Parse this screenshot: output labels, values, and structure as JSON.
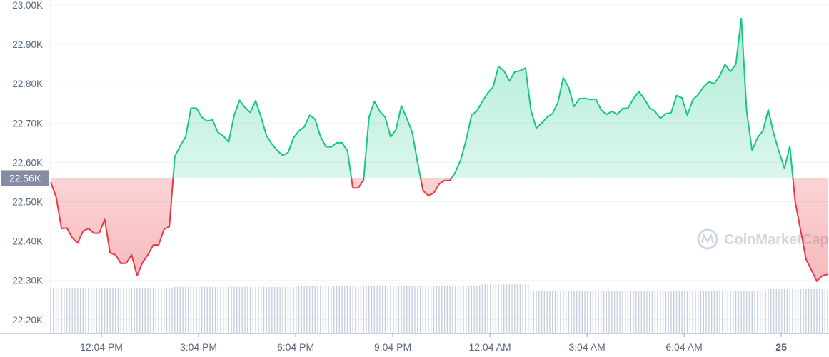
{
  "chart_data": {
    "type": "line",
    "title": "",
    "xlabel": "",
    "ylabel": "",
    "ylim": [
      22170,
      23000
    ],
    "grid": true,
    "baseline": {
      "value": 22560,
      "label": "22.56K"
    },
    "colors": {
      "above": "#16c784",
      "below": "#ea3943",
      "volume": "#c6cfe0",
      "baseline_label_bg": "#858ca2"
    },
    "watermark": "CoinMarketCap",
    "y_ticks": [
      {
        "value": 23000,
        "label": "23.00K"
      },
      {
        "value": 22900,
        "label": "22.90K"
      },
      {
        "value": 22800,
        "label": "22.80K"
      },
      {
        "value": 22700,
        "label": "22.70K"
      },
      {
        "value": 22600,
        "label": "22.60K"
      },
      {
        "value": 22500,
        "label": "22.50K"
      },
      {
        "value": 22400,
        "label": "22.40K"
      },
      {
        "value": 22300,
        "label": "22.30K"
      },
      {
        "value": 22200,
        "label": "22.20K"
      }
    ],
    "x_ticks": [
      {
        "at": "12:04",
        "label": "12:04 PM",
        "bold": false
      },
      {
        "at": "15:04",
        "label": "3:04 PM",
        "bold": false
      },
      {
        "at": "18:04",
        "label": "6:04 PM",
        "bold": false
      },
      {
        "at": "21:04",
        "label": "9:04 PM",
        "bold": false
      },
      {
        "at": "00:04",
        "label": "12:04 AM",
        "bold": false
      },
      {
        "at": "03:04",
        "label": "3:04 AM",
        "bold": false
      },
      {
        "at": "06:04",
        "label": "6:04 AM",
        "bold": false
      },
      {
        "at": "09:04",
        "label": "25",
        "bold": true
      }
    ],
    "x": [
      "10:30",
      "10:40",
      "10:50",
      "11:00",
      "11:10",
      "11:20",
      "11:30",
      "11:40",
      "11:50",
      "12:00",
      "12:10",
      "12:20",
      "12:30",
      "12:40",
      "12:50",
      "13:00",
      "13:10",
      "13:20",
      "13:30",
      "13:40",
      "13:50",
      "14:00",
      "14:10",
      "14:20",
      "14:30",
      "14:40",
      "14:50",
      "15:00",
      "15:10",
      "15:20",
      "15:30",
      "15:40",
      "15:50",
      "16:00",
      "16:10",
      "16:20",
      "16:30",
      "16:40",
      "16:50",
      "17:00",
      "17:10",
      "17:20",
      "17:30",
      "17:40",
      "17:50",
      "18:00",
      "18:10",
      "18:20",
      "18:30",
      "18:40",
      "18:50",
      "19:00",
      "19:10",
      "19:20",
      "19:30",
      "19:40",
      "19:50",
      "20:00",
      "20:10",
      "20:20",
      "20:30",
      "20:40",
      "20:50",
      "21:00",
      "21:10",
      "21:20",
      "21:30",
      "21:40",
      "21:50",
      "22:00",
      "22:10",
      "22:20",
      "22:30",
      "22:40",
      "22:50",
      "23:00",
      "23:10",
      "23:20",
      "23:30",
      "23:40",
      "23:50",
      "00:00",
      "00:10",
      "00:20",
      "00:30",
      "00:40",
      "00:50",
      "01:00",
      "01:10",
      "01:20",
      "01:30",
      "01:40",
      "01:50",
      "02:00",
      "02:10",
      "02:20",
      "02:30",
      "02:40",
      "02:50",
      "03:00",
      "03:10",
      "03:20",
      "03:30",
      "03:40",
      "03:50",
      "04:00",
      "04:10",
      "04:20",
      "04:30",
      "04:40",
      "04:50",
      "05:00",
      "05:10",
      "05:20",
      "05:30",
      "05:40",
      "05:50",
      "06:00",
      "06:10",
      "06:20",
      "06:30",
      "06:40",
      "06:50",
      "07:00",
      "07:10",
      "07:20",
      "07:30",
      "07:40",
      "07:50",
      "08:00",
      "08:10",
      "08:20",
      "08:30",
      "08:40",
      "08:50",
      "09:00",
      "09:10",
      "09:20",
      "09:30",
      "09:40",
      "09:50",
      "10:00",
      "10:10",
      "10:20",
      "10:30"
    ],
    "series": [
      {
        "values": [
          22550,
          22512,
          22432,
          22433,
          22408,
          22395,
          22425,
          22432,
          22420,
          22420,
          22455,
          22370,
          22365,
          22343,
          22344,
          22365,
          22312,
          22345,
          22365,
          22390,
          22390,
          22430,
          22437,
          22615,
          22642,
          22665,
          22738,
          22738,
          22715,
          22705,
          22708,
          22676,
          22667,
          22652,
          22720,
          22758,
          22740,
          22727,
          22757,
          22715,
          22668,
          22647,
          22630,
          22618,
          22625,
          22662,
          22680,
          22690,
          22720,
          22710,
          22666,
          22640,
          22639,
          22650,
          22650,
          22630,
          22535,
          22535,
          22555,
          22715,
          22755,
          22730,
          22715,
          22665,
          22683,
          22744,
          22712,
          22677,
          22600,
          22528,
          22516,
          22522,
          22545,
          22554,
          22554,
          22575,
          22607,
          22657,
          22720,
          22731,
          22755,
          22776,
          22792,
          22844,
          22833,
          22807,
          22830,
          22833,
          22840,
          22733,
          22687,
          22700,
          22715,
          22724,
          22752,
          22815,
          22790,
          22742,
          22762,
          22763,
          22760,
          22761,
          22734,
          22722,
          22730,
          22722,
          22737,
          22738,
          22762,
          22780,
          22762,
          22739,
          22730,
          22712,
          22724,
          22726,
          22770,
          22764,
          22720,
          22759,
          22772,
          22792,
          22805,
          22800,
          22820,
          22849,
          22831,
          22850,
          22966,
          22730,
          22630,
          22663,
          22680,
          22734,
          22674,
          22627,
          22585,
          22641,
          22499,
          22427,
          22354,
          22326,
          22298,
          22312,
          22315
        ]
      }
    ],
    "volume_relative": [
      63,
      63,
      63,
      63,
      63,
      63,
      63,
      63,
      63,
      63,
      63,
      63,
      63,
      63,
      63,
      63,
      63,
      63,
      63,
      63,
      63,
      63,
      63,
      65,
      65,
      65,
      65,
      65,
      65,
      65,
      65,
      65,
      65,
      65,
      65,
      65,
      65,
      65,
      65,
      65,
      65,
      65,
      65,
      65,
      65,
      65,
      67,
      67,
      67,
      67,
      67,
      67,
      67,
      67,
      67,
      67,
      67,
      67,
      67,
      67,
      67,
      67,
      67,
      67,
      67,
      67,
      67,
      67,
      67,
      67,
      67,
      67,
      67,
      67,
      67,
      67,
      67,
      67,
      67,
      67,
      69,
      69,
      69,
      69,
      69,
      69,
      69,
      69,
      69,
      59,
      59,
      59,
      59,
      59,
      59,
      59,
      59,
      59,
      59,
      59,
      59,
      59,
      59,
      59,
      59,
      59,
      59,
      59,
      59,
      59,
      59,
      59,
      59,
      59,
      59,
      59,
      59,
      59,
      59,
      60,
      60,
      60,
      60,
      60,
      60,
      60,
      60,
      60,
      60,
      60,
      60,
      60,
      60,
      62,
      62,
      62,
      62,
      62,
      62,
      62,
      62,
      62,
      62,
      62,
      62
    ]
  }
}
